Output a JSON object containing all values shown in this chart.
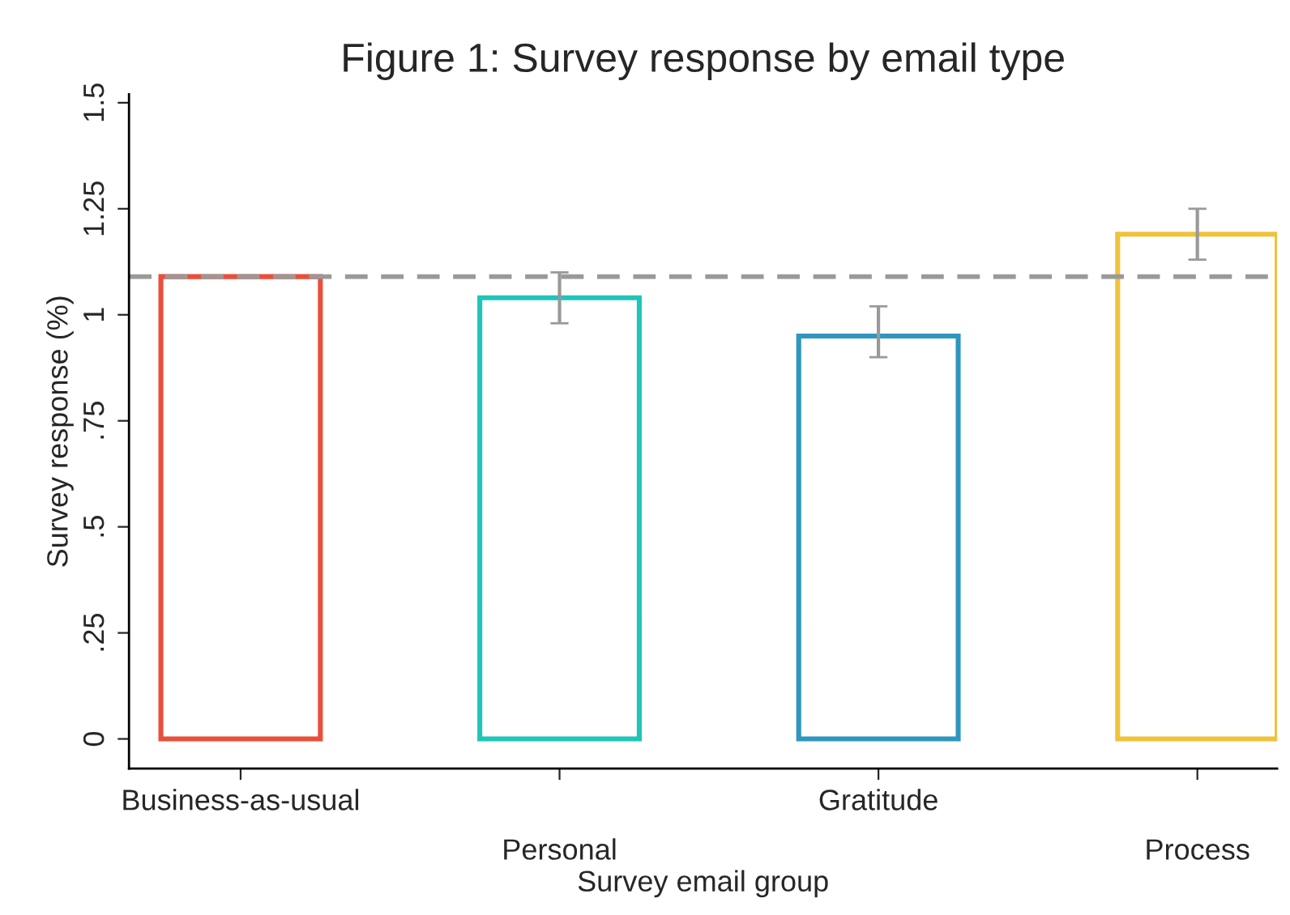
{
  "chart_data": {
    "type": "bar",
    "title": "Figure 1: Survey response by email type",
    "xlabel": "Survey email group",
    "ylabel": "Survey response (%)",
    "categories": [
      "Business-as-usual",
      "Personal",
      "Gratitude",
      "Process"
    ],
    "values": [
      1.09,
      1.04,
      0.95,
      1.19
    ],
    "colors": [
      "#e8503c",
      "#1fc5b8",
      "#2e96bf",
      "#f0c23c"
    ],
    "errors": [
      null,
      [
        0.98,
        1.1
      ],
      [
        0.9,
        1.02
      ],
      [
        1.13,
        1.25
      ]
    ],
    "ref_lines": [
      {
        "axis": "y",
        "value": 1.09,
        "color": "#999999",
        "line_style": "dashed"
      }
    ],
    "ylim": [
      -0.07,
      1.52
    ],
    "yticks": [
      {
        "value": 0,
        "label": "0"
      },
      {
        "value": 0.25,
        "label": ".25"
      },
      {
        "value": 0.5,
        "label": ".5"
      },
      {
        "value": 0.75,
        "label": ".75"
      },
      {
        "value": 1,
        "label": "1"
      },
      {
        "value": 1.25,
        "label": "1.25"
      },
      {
        "value": 1.5,
        "label": "1.5"
      }
    ],
    "grid": false,
    "legend": false
  }
}
